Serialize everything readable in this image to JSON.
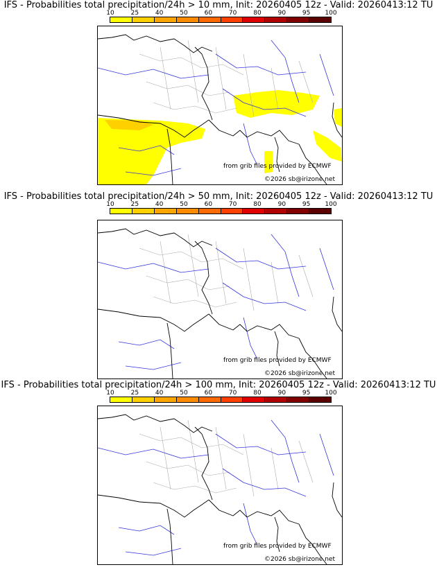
{
  "legend": {
    "ticks": [
      "10",
      "25",
      "40",
      "50",
      "60",
      "70",
      "80",
      "90",
      "95",
      "100"
    ],
    "colors": [
      "#ffff00",
      "#ffd000",
      "#ffa500",
      "#ff8c00",
      "#ff6a00",
      "#ff4000",
      "#e00000",
      "#b00000",
      "#800000",
      "#5a0000"
    ]
  },
  "panels": [
    {
      "title": "IFS - Probabilities total precipitation/24h > 10 mm, Init: 20260405 12z - Valid: 20260413:12 TU",
      "source": "from grib files provided by ECMWF",
      "copyright": "©2026 sb@irizone.net"
    },
    {
      "title": "IFS - Probabilities total precipitation/24h > 50 mm, Init: 20260405 12z - Valid: 20260413:12 TU",
      "source": "from grib files provided by ECMWF",
      "copyright": "©2026 sb@irizone.net"
    },
    {
      "title": "IFS - Probabilities total precipitation/24h > 100 mm, Init: 20260405 12z - Valid: 20260413:12 TU",
      "source": "from grib files provided by ECMWF",
      "copyright": "©2026 sb@irizone.net"
    }
  ],
  "map_style": {
    "coast": "#000000",
    "rivers": "#3333dd",
    "borders": "#aaaaaa",
    "precip_low": "#ffff00",
    "precip_mid": "#ffd000"
  }
}
